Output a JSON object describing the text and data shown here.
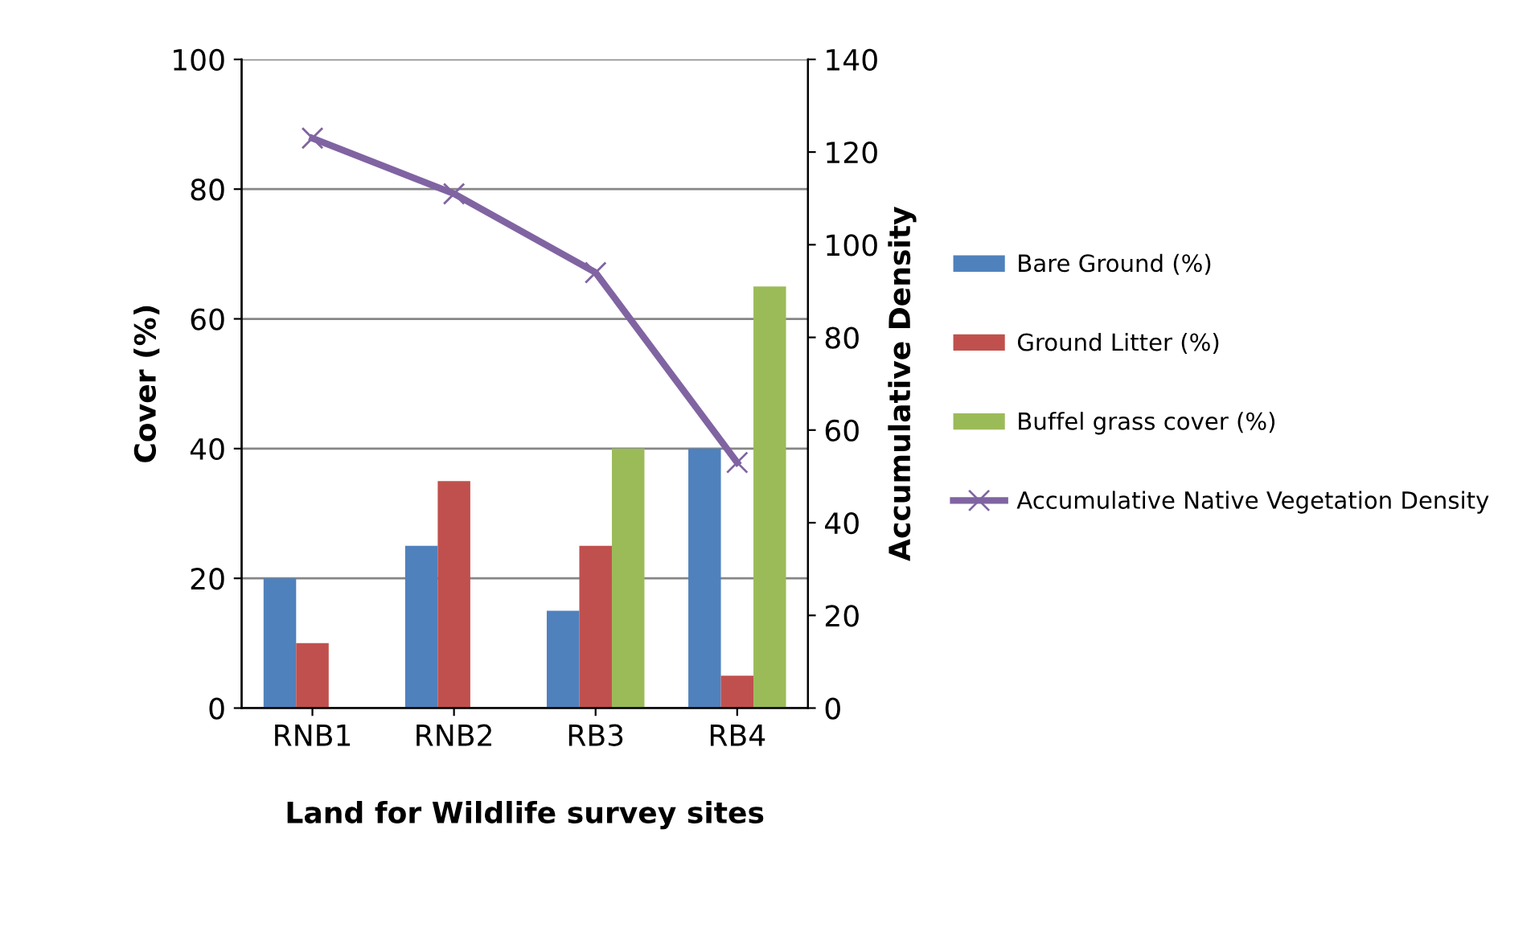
{
  "chart_data": {
    "type": "bar",
    "xlabel": "Land for Wildlife survey sites",
    "ylabel": "Cover (%)",
    "y2label": "Accumulative Density",
    "categories": [
      "RNB1",
      "RNB2",
      "RB3",
      "RB4"
    ],
    "series": [
      {
        "name": "Bare Ground (%)",
        "color": "#4f81bd",
        "values": [
          20,
          25,
          15,
          40
        ]
      },
      {
        "name": "Ground Litter (%)",
        "color": "#c0504d",
        "values": [
          10,
          35,
          25,
          5
        ]
      },
      {
        "name": "Buffel grass cover (%)",
        "color": "#9bbb59",
        "values": [
          null,
          null,
          40,
          65
        ]
      },
      {
        "name": "Accumulative Native Vegetation Density",
        "color": "#8064a2",
        "type": "line",
        "axis": "y2",
        "marker": "cross",
        "values": [
          123,
          111,
          94,
          53
        ]
      }
    ],
    "ylim": [
      0,
      100
    ],
    "yticks": [
      0,
      20,
      40,
      60,
      80,
      100
    ],
    "y2lim": [
      0,
      140
    ],
    "y2ticks": [
      0,
      20,
      40,
      60,
      80,
      100,
      120,
      140
    ],
    "grid": "y",
    "legend": "right"
  }
}
